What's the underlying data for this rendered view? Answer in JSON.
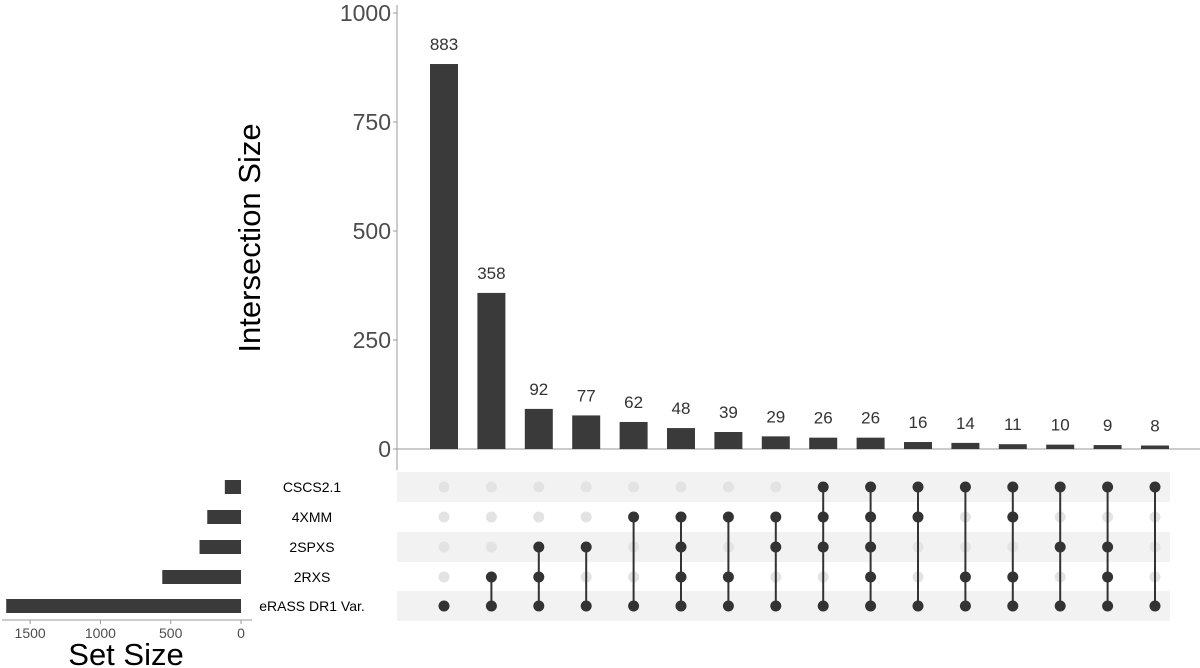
{
  "chart_data": {
    "type": "bar",
    "subtype": "upset",
    "ylabel": "Intersection Size",
    "ylim": [
      0,
      1000
    ],
    "yticks": [
      "0",
      "250",
      "500",
      "750",
      "1000"
    ],
    "yticks_values": [
      0,
      250,
      500,
      750,
      1000
    ],
    "values": [
      883,
      358,
      92,
      77,
      62,
      48,
      39,
      29,
      26,
      26,
      16,
      14,
      11,
      10,
      9,
      8
    ],
    "value_labels": [
      "883",
      "358",
      "92",
      "77",
      "62",
      "48",
      "39",
      "29",
      "26",
      "26",
      "16",
      "14",
      "11",
      "10",
      "9",
      "8"
    ],
    "sets": [
      "CSCS2.1",
      "4XMM",
      "2SPXS",
      "2RXS",
      "eRASS DR1 Var."
    ],
    "intersections": [
      [
        "eRASS DR1 Var."
      ],
      [
        "2RXS",
        "eRASS DR1 Var."
      ],
      [
        "2SPXS",
        "2RXS",
        "eRASS DR1 Var."
      ],
      [
        "2SPXS",
        "eRASS DR1 Var."
      ],
      [
        "4XMM",
        "eRASS DR1 Var."
      ],
      [
        "4XMM",
        "2SPXS",
        "2RXS",
        "eRASS DR1 Var."
      ],
      [
        "4XMM",
        "2RXS",
        "eRASS DR1 Var."
      ],
      [
        "4XMM",
        "2SPXS",
        "eRASS DR1 Var."
      ],
      [
        "CSCS2.1",
        "4XMM",
        "2SPXS",
        "eRASS DR1 Var."
      ],
      [
        "CSCS2.1",
        "4XMM",
        "2SPXS",
        "2RXS",
        "eRASS DR1 Var."
      ],
      [
        "CSCS2.1",
        "4XMM",
        "eRASS DR1 Var."
      ],
      [
        "CSCS2.1",
        "2RXS",
        "eRASS DR1 Var."
      ],
      [
        "CSCS2.1",
        "4XMM",
        "2RXS",
        "eRASS DR1 Var."
      ],
      [
        "CSCS2.1",
        "2SPXS",
        "eRASS DR1 Var."
      ],
      [
        "CSCS2.1",
        "2SPXS",
        "2RXS",
        "eRASS DR1 Var."
      ],
      [
        "CSCS2.1",
        "eRASS DR1 Var."
      ]
    ],
    "set_size": {
      "title": "Set Size",
      "values": [
        115,
        240,
        295,
        560,
        1670
      ],
      "xlim": [
        0,
        1700
      ],
      "ticks": [
        "1500",
        "1000",
        "500",
        "0"
      ],
      "ticks_values": [
        1500,
        1000,
        500,
        0
      ]
    },
    "colors": {
      "bar": "#3a3a3a",
      "dot_active": "#333333",
      "dot_inactive": "#e3e3e3",
      "stripe": "#f2f2f2",
      "axis": "#4d4d4d"
    }
  }
}
